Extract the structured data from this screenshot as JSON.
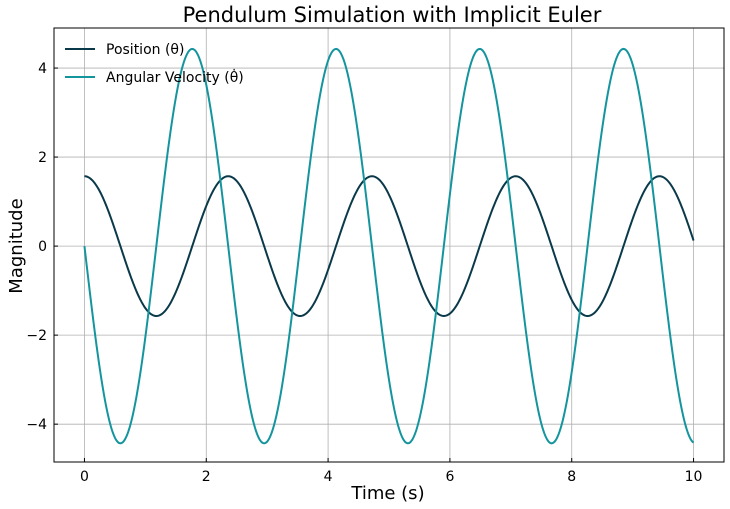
{
  "chart_data": {
    "type": "line",
    "title": "Pendulum Simulation with Implicit Euler",
    "xlabel": "Time (s)",
    "ylabel": "Magnitude",
    "xlim": [
      -0.5,
      10.5
    ],
    "ylim": [
      -4.85,
      4.9
    ],
    "xticks": [
      0,
      2,
      4,
      6,
      8,
      10
    ],
    "xtick_labels": [
      "0",
      "2",
      "4",
      "6",
      "8",
      "10"
    ],
    "yticks": [
      -4,
      -2,
      0,
      2,
      4
    ],
    "ytick_labels": [
      "−4",
      "−2",
      "0",
      "2",
      "4"
    ],
    "grid": true,
    "legend": "top-left",
    "x_start": 0,
    "x_end": 10,
    "series": [
      {
        "name": "Position (θ)",
        "color": "#0a3a4a",
        "kind": "position",
        "amplitude": 1.57,
        "period": 2.36,
        "peaks": [
          [
            0,
            1.57
          ],
          [
            1.18,
            -1.57
          ],
          [
            2.37,
            1.57
          ],
          [
            3.55,
            -1.57
          ],
          [
            4.73,
            1.57
          ],
          [
            5.92,
            -1.57
          ],
          [
            7.1,
            1.57
          ],
          [
            8.28,
            -1.57
          ],
          [
            9.46,
            1.57
          ]
        ],
        "end_value": 0.32
      },
      {
        "name": "Angular Velocity (θ̇)",
        "color": "#14959e",
        "kind": "velocity",
        "amplitude": 4.43,
        "period": 2.36,
        "peaks": [
          [
            0,
            0
          ],
          [
            0.59,
            -4.43
          ],
          [
            1.78,
            4.43
          ],
          [
            2.96,
            -4.43
          ],
          [
            4.14,
            4.43
          ],
          [
            5.33,
            -4.43
          ],
          [
            6.51,
            4.43
          ],
          [
            7.69,
            -4.43
          ],
          [
            8.87,
            4.43
          ]
        ],
        "end_value": -4.33
      }
    ]
  }
}
